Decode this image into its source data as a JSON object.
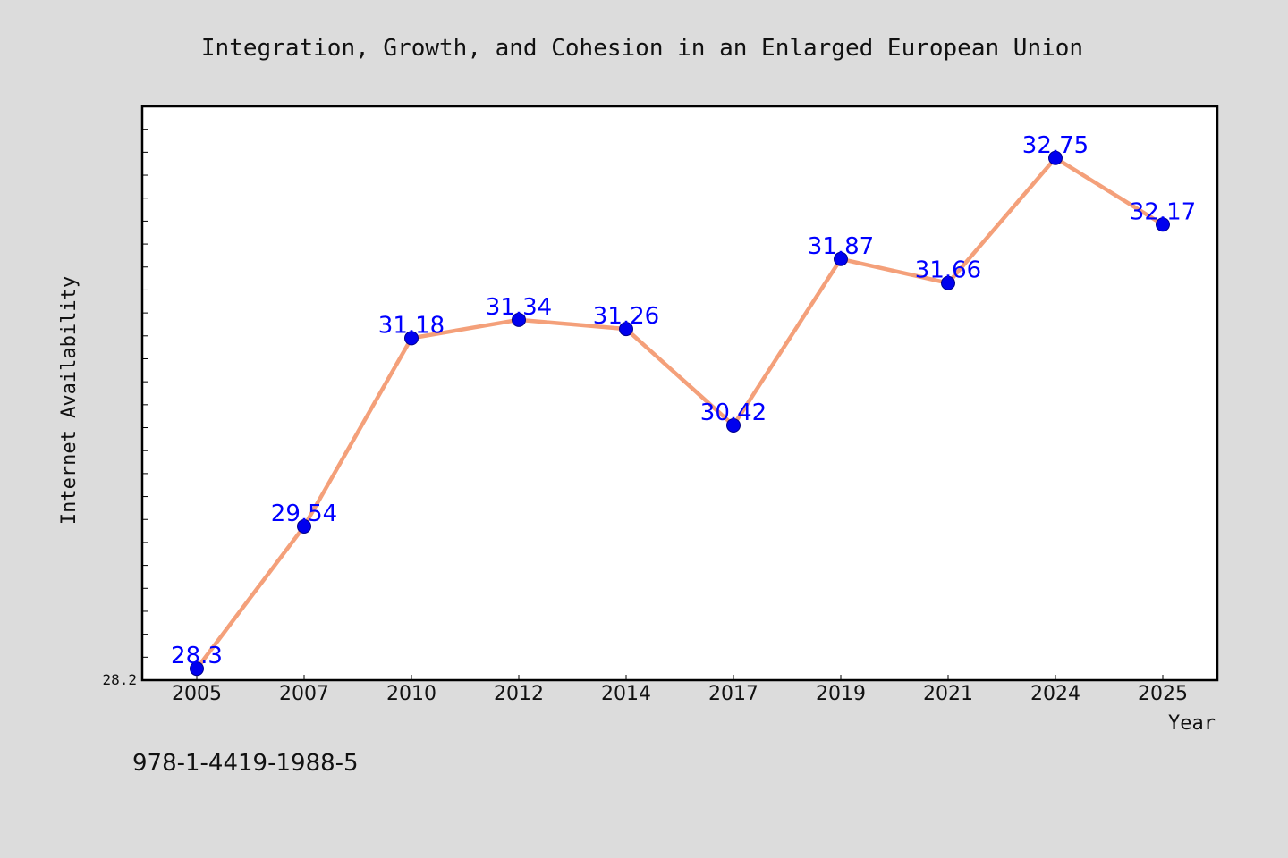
{
  "chart_data": {
    "type": "line",
    "title": "Integration, Growth, and Cohesion in an Enlarged European Union",
    "xlabel": "Year",
    "ylabel": "Internet Availability",
    "categories": [
      "2005",
      "2007",
      "2010",
      "2012",
      "2014",
      "2017",
      "2019",
      "2021",
      "2024",
      "2025"
    ],
    "series": [
      {
        "values": [
          28.3,
          29.54,
          31.18,
          31.34,
          31.26,
          30.42,
          31.87,
          31.66,
          32.75,
          32.17
        ]
      }
    ],
    "data_labels": [
      "28.3",
      "29.54",
      "31.18",
      "31.34",
      "31.26",
      "30.42",
      "31.87",
      "31.66",
      "32.75",
      "32.17"
    ],
    "ylim": [
      28.2,
      33.2
    ],
    "y_tick_labels": [
      "28.2"
    ],
    "grid": false,
    "legend": "none"
  },
  "footer": {
    "isbn": "978-1-4419-1988-5"
  },
  "colors": {
    "background": "#dcdcdc",
    "plot_background": "#ffffff",
    "line": "#f4a07a",
    "marker": "#0000ee",
    "data_label": "#0000ff",
    "axis": "#000000"
  }
}
